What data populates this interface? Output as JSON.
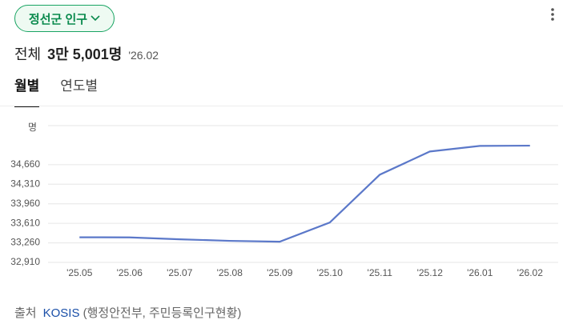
{
  "header": {
    "selector": "정선군 인구"
  },
  "summary": {
    "label": "전체",
    "value": "3만 5,001명",
    "date": "'26.02"
  },
  "tabs": [
    "월별",
    "연도별"
  ],
  "chart_data": {
    "type": "line",
    "y_unit": "명",
    "categories": [
      "'25.05",
      "'25.06",
      "'25.07",
      "'25.08",
      "'25.09",
      "'25.10",
      "'25.11",
      "'25.12",
      "'26.01",
      "'26.02"
    ],
    "values": [
      33360,
      33358,
      33324,
      33296,
      33281,
      33624,
      34481,
      34896,
      34996,
      35001
    ],
    "color": "#5b78c9",
    "ylim": [
      32910,
      35360
    ],
    "yticks": [
      {
        "value": 32910,
        "label": "32,910"
      },
      {
        "value": 33260,
        "label": "33,260"
      },
      {
        "value": 33610,
        "label": "33,610"
      },
      {
        "value": 33960,
        "label": "33,960"
      },
      {
        "value": 34310,
        "label": "34,310"
      },
      {
        "value": 34660,
        "label": "34,660"
      }
    ],
    "grid": true
  },
  "footer": {
    "label": "출처",
    "source": "KOSIS",
    "detail": "(행정안전부, 주민등록인구현황)"
  }
}
